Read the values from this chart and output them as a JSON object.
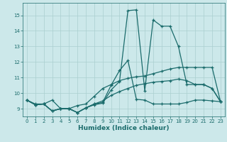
{
  "xlabel": "Humidex (Indice chaleur)",
  "xlim": [
    -0.5,
    23.5
  ],
  "ylim": [
    8.5,
    15.8
  ],
  "yticks": [
    9,
    10,
    11,
    12,
    13,
    14,
    15
  ],
  "xticks": [
    0,
    1,
    2,
    3,
    4,
    5,
    6,
    7,
    8,
    9,
    10,
    11,
    12,
    13,
    14,
    15,
    16,
    17,
    18,
    19,
    20,
    21,
    22,
    23
  ],
  "bg_color": "#cce8ea",
  "line_color": "#1a6b6b",
  "grid_color": "#aacfcf",
  "lines": [
    {
      "x": [
        0,
        1,
        2,
        3,
        4,
        5,
        6,
        7,
        8,
        9,
        10,
        11,
        12,
        13,
        14,
        15,
        16,
        17,
        18,
        19,
        20,
        21,
        22,
        23
      ],
      "y": [
        9.55,
        9.25,
        9.3,
        8.85,
        9.0,
        9.0,
        8.75,
        9.05,
        9.25,
        9.35,
        10.2,
        10.75,
        15.3,
        15.35,
        10.15,
        14.7,
        14.3,
        14.3,
        13.0,
        10.55,
        10.55,
        10.55,
        10.3,
        9.45
      ]
    },
    {
      "x": [
        0,
        1,
        2,
        3,
        4,
        5,
        6,
        7,
        8,
        9,
        10,
        11,
        12,
        13,
        14,
        15,
        16,
        17,
        18,
        19,
        20,
        21,
        22,
        23
      ],
      "y": [
        9.55,
        9.25,
        9.3,
        8.85,
        9.0,
        9.0,
        8.75,
        9.05,
        9.3,
        9.4,
        10.5,
        11.45,
        12.1,
        9.6,
        9.55,
        9.3,
        9.3,
        9.3,
        9.3,
        9.4,
        9.55,
        9.55,
        9.5,
        9.45
      ]
    },
    {
      "x": [
        0,
        1,
        2,
        3,
        4,
        5,
        6,
        7,
        8,
        9,
        10,
        11,
        12,
        13,
        14,
        15,
        16,
        17,
        18,
        19,
        20,
        21,
        22,
        23
      ],
      "y": [
        9.55,
        9.3,
        9.3,
        9.55,
        9.0,
        9.0,
        9.2,
        9.3,
        9.8,
        10.3,
        10.55,
        10.8,
        10.95,
        11.05,
        11.1,
        11.25,
        11.4,
        11.55,
        11.65,
        11.65,
        11.65,
        11.65,
        11.65,
        9.45
      ]
    },
    {
      "x": [
        0,
        1,
        2,
        3,
        4,
        5,
        6,
        7,
        8,
        9,
        10,
        11,
        12,
        13,
        14,
        15,
        16,
        17,
        18,
        19,
        20,
        21,
        22,
        23
      ],
      "y": [
        9.55,
        9.25,
        9.3,
        8.85,
        9.0,
        9.0,
        8.75,
        9.05,
        9.3,
        9.5,
        9.85,
        10.1,
        10.3,
        10.5,
        10.6,
        10.7,
        10.75,
        10.8,
        10.9,
        10.8,
        10.55,
        10.55,
        10.3,
        9.45
      ]
    }
  ]
}
